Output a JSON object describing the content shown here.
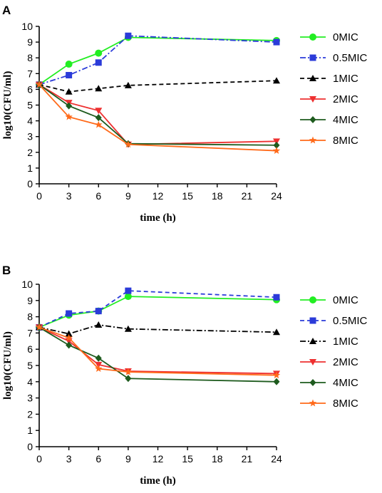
{
  "figure": {
    "panels": [
      "A",
      "B"
    ]
  },
  "chart_data": [
    {
      "panel": "A",
      "type": "line",
      "xlabel": "time (h)",
      "ylabel": "log10(CFU/ml)",
      "x_ticks": [
        0,
        3,
        6,
        9,
        12,
        15,
        18,
        21,
        24
      ],
      "y_ticks": [
        0,
        1,
        2,
        3,
        4,
        5,
        6,
        7,
        8,
        9,
        10
      ],
      "xlim": [
        0,
        24
      ],
      "ylim": [
        0,
        10
      ],
      "x": [
        0,
        3,
        6,
        9,
        24
      ],
      "legend_position": "right",
      "series": [
        {
          "name": "0MIC",
          "color": "#22ee22",
          "marker": "circle",
          "dash": "solid",
          "values": [
            6.3,
            7.6,
            8.3,
            9.3,
            9.1
          ]
        },
        {
          "name": "0.5MIC",
          "color": "#2b3bd9",
          "marker": "square",
          "dash": "dashdot",
          "values": [
            6.3,
            6.9,
            7.7,
            9.4,
            9.0
          ]
        },
        {
          "name": "1MIC",
          "color": "#000000",
          "marker": "triangle",
          "dash": "dashed",
          "values": [
            6.3,
            5.85,
            6.05,
            6.25,
            6.55
          ]
        },
        {
          "name": "2MIC",
          "color": "#ee3030",
          "marker": "triangle-down",
          "dash": "solid",
          "values": [
            6.3,
            5.15,
            4.65,
            2.5,
            2.7
          ]
        },
        {
          "name": "4MIC",
          "color": "#1e5b1e",
          "marker": "diamond",
          "dash": "solid",
          "values": [
            6.3,
            4.95,
            4.2,
            2.55,
            2.45
          ]
        },
        {
          "name": "8MIC",
          "color": "#ff6a1a",
          "marker": "star",
          "dash": "solid",
          "values": [
            6.3,
            4.25,
            3.75,
            2.5,
            2.1
          ]
        }
      ]
    },
    {
      "panel": "B",
      "type": "line",
      "xlabel": "time (h)",
      "ylabel": "log10(CFU/ml)",
      "x_ticks": [
        0,
        3,
        6,
        9,
        12,
        15,
        18,
        21,
        24
      ],
      "y_ticks": [
        0,
        1,
        2,
        3,
        4,
        5,
        6,
        7,
        8,
        9,
        10
      ],
      "xlim": [
        0,
        24
      ],
      "ylim": [
        0,
        10
      ],
      "x": [
        0,
        3,
        6,
        9,
        24
      ],
      "legend_position": "right",
      "series": [
        {
          "name": "0MIC",
          "color": "#22ee22",
          "marker": "circle",
          "dash": "solid",
          "values": [
            7.35,
            8.1,
            8.35,
            9.25,
            9.05
          ]
        },
        {
          "name": "0.5MIC",
          "color": "#2b3bd9",
          "marker": "square",
          "dash": "dashed",
          "values": [
            7.35,
            8.2,
            8.35,
            9.6,
            9.2
          ]
        },
        {
          "name": "1MIC",
          "color": "#000000",
          "marker": "triangle",
          "dash": "dashdot",
          "values": [
            7.35,
            6.95,
            7.5,
            7.25,
            7.05
          ]
        },
        {
          "name": "2MIC",
          "color": "#ee3030",
          "marker": "triangle-down",
          "dash": "solid",
          "values": [
            7.35,
            6.5,
            5.05,
            4.65,
            4.5
          ]
        },
        {
          "name": "4MIC",
          "color": "#1e5b1e",
          "marker": "diamond",
          "dash": "solid",
          "values": [
            7.35,
            6.25,
            5.45,
            4.2,
            4.0
          ]
        },
        {
          "name": "8MIC",
          "color": "#ff6a1a",
          "marker": "star",
          "dash": "solid",
          "values": [
            7.35,
            6.7,
            4.8,
            4.6,
            4.4
          ]
        }
      ]
    }
  ]
}
